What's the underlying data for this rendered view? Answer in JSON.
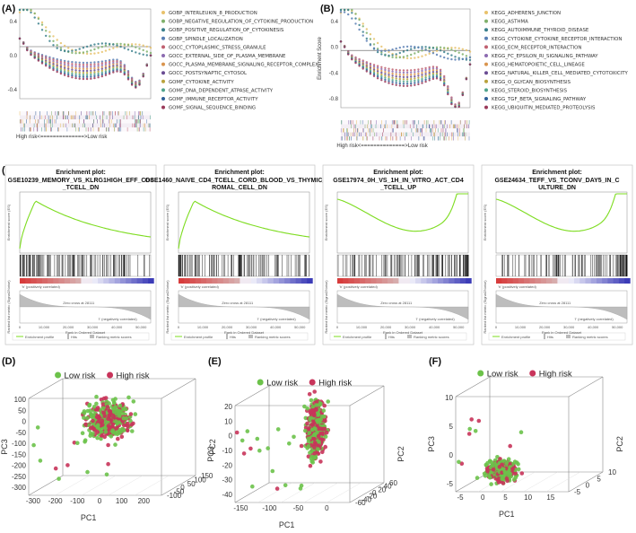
{
  "panels": {
    "a": "(A)",
    "b": "(B)",
    "c": "(C)",
    "d": "(D)",
    "e": "(E)",
    "f": "(F)"
  },
  "chart_data": [
    {
      "id": "A",
      "type": "line",
      "ylabel": "Enrichment Score",
      "yticks": [
        "0.4",
        "0.0",
        "-0.4"
      ],
      "xcaption": "High risk<==============>Low risk",
      "legend": [
        {
          "label": "GOBP_INTERLEUKIN_8_PRODUCTION",
          "color": "#e8c26b"
        },
        {
          "label": "GOBP_NEGATIVE_REGULATION_OF_CYTOKINE_PRODUCTION",
          "color": "#7fb06a"
        },
        {
          "label": "GOBP_POSITIVE_REGULATION_OF_CYTOKINESIS",
          "color": "#3a7f8c"
        },
        {
          "label": "GOBP_SPINDLE_LOCALIZATION",
          "color": "#5a7fb4"
        },
        {
          "label": "GOCC_CYTOPLASMIC_STRESS_GRANULE",
          "color": "#c06070"
        },
        {
          "label": "GOCC_EXTERNAL_SIDE_OF_PLASMA_MEMBRANE",
          "color": "#8c6bb1"
        },
        {
          "label": "GOCC_PLASMA_MEMBRANE_SIGNALING_RECEPTOR_COMPLEX",
          "color": "#d9944e"
        },
        {
          "label": "GOCC_POSTSYNAPTIC_CYTOSOL",
          "color": "#6a4c93"
        },
        {
          "label": "GOMF_CYTOKINE_ACTIVITY",
          "color": "#b9a23c"
        },
        {
          "label": "GOMF_DNA_DEPENDENT_ATPASE_ACTIVITY",
          "color": "#4fa38c"
        },
        {
          "label": "GOMF_IMMUNE_RECEPTOR_ACTIVITY",
          "color": "#2f5f98"
        },
        {
          "label": "GOMF_SIGNAL_SEQUENCE_BINDING",
          "color": "#9a3a5a"
        }
      ]
    },
    {
      "id": "B",
      "type": "line",
      "ylabel": "Enrichment Score",
      "yticks": [
        "0.4",
        "0.0",
        "-0.4",
        "-0.8"
      ],
      "xcaption": "High risk<==============>Low risk",
      "legend": [
        {
          "label": "KEGG_ADHERENS_JUNCTION",
          "color": "#e8c26b"
        },
        {
          "label": "KEGG_ASTHMA",
          "color": "#7fb06a"
        },
        {
          "label": "KEGG_AUTOIMMUNE_THYROID_DISEASE",
          "color": "#3a7f8c"
        },
        {
          "label": "KEGG_CYTOKINE_CYTOKINE_RECEPTOR_INTERACTION",
          "color": "#5a7fb4"
        },
        {
          "label": "KEGG_ECM_RECEPTOR_INTERACTION",
          "color": "#c06070"
        },
        {
          "label": "KEGG_FC_EPSILON_RI_SIGNALING_PATHWAY",
          "color": "#8c6bb1"
        },
        {
          "label": "KEGG_HEMATOPOIETIC_CELL_LINEAGE",
          "color": "#d9944e"
        },
        {
          "label": "KEGG_NATURAL_KILLER_CELL_MEDIATED_CYTOTOXICITY",
          "color": "#6a4c93"
        },
        {
          "label": "KEGG_O_GLYCAN_BIOSYNTHESIS",
          "color": "#b9a23c"
        },
        {
          "label": "KEGG_STEROID_BIOSYNTHESIS",
          "color": "#4fa38c"
        },
        {
          "label": "KEGG_TGF_BETA_SIGNALING_PATHWAY",
          "color": "#2f5f98"
        },
        {
          "label": "KEGG_UBIQUITIN_MEDIATED_PROTEOLYSIS",
          "color": "#9a3a5a"
        }
      ]
    },
    {
      "id": "C",
      "type": "line",
      "plots": [
        {
          "heading": "Enrichment plot:",
          "title": "GSE10239_MEMORY_VS_KLRG1HIGH_EFF_CD8_TCELL_DN",
          "shape": "peak"
        },
        {
          "heading": "Enrichment plot:",
          "title": "GSE1460_NAIVE_CD4_TCELL_CORD_BLOOD_VS_THYMIC_STROMAL_CELL_DN",
          "shape": "peak"
        },
        {
          "heading": "Enrichment plot:",
          "title": "GSE17974_0H_VS_1H_IN_VITRO_ACT_CD4_TCELL_UP",
          "shape": "valley"
        },
        {
          "heading": "Enrichment plot:",
          "title": "GSE24634_TEFF_VS_TCONV_DAY5_IN_CULTURE_DN",
          "shape": "valley"
        }
      ],
      "ylabel_top": "Enrichment score (ES)",
      "ylabel_bottom": "Ranked list metric (Signal2Noise)",
      "xlabel": "Rank in Ordered Dataset",
      "xticks": [
        "0",
        "10,000",
        "20,000",
        "30,000",
        "40,000",
        "50,000"
      ],
      "pos_label": "'h' (positively correlated)",
      "neg_label": "'l' (negatively correlated)",
      "zero_cross": "Zero cross at 28111",
      "legend": [
        "Enrichment profile",
        "Hits",
        "Ranking metric scores"
      ]
    },
    {
      "id": "D",
      "type": "scatter",
      "legend": [
        {
          "label": "Low risk",
          "color": "#6cc24a"
        },
        {
          "label": "High risk",
          "color": "#c8345a"
        }
      ],
      "xlabel": "PC1",
      "ylabel": "PC3",
      "zlabel": "PC2",
      "xticks": [
        "-300",
        "-200",
        "-100",
        "0",
        "100",
        "200"
      ],
      "yticks": [
        "-300",
        "-250",
        "-200",
        "-150",
        "-100",
        "-50",
        "0",
        "50",
        "100"
      ],
      "zticks": [
        "-100",
        "-50",
        "0",
        "50",
        "100",
        "150"
      ]
    },
    {
      "id": "E",
      "type": "scatter",
      "legend": [
        {
          "label": "Low risk",
          "color": "#6cc24a"
        },
        {
          "label": "High risk",
          "color": "#c8345a"
        }
      ],
      "xlabel": "PC1",
      "ylabel": "PC3",
      "zlabel": "PC2",
      "xticks": [
        "-150",
        "-100",
        "-50",
        "0"
      ],
      "yticks": [
        "-40",
        "-30",
        "-20",
        "-10",
        "0",
        "10",
        "20"
      ],
      "zticks": [
        "-60",
        "-40",
        "-20",
        "0",
        "20",
        "40",
        "60"
      ]
    },
    {
      "id": "F",
      "type": "scatter",
      "legend": [
        {
          "label": "Low risk",
          "color": "#6cc24a"
        },
        {
          "label": "High risk",
          "color": "#c8345a"
        }
      ],
      "xlabel": "PC1",
      "ylabel": "PC3",
      "zlabel": "PC2",
      "xticks": [
        "-5",
        "0",
        "5",
        "10",
        "15"
      ],
      "yticks": [
        "-5",
        "0",
        "5",
        "10"
      ],
      "zticks": [
        "-5",
        "0",
        "5",
        "10"
      ]
    }
  ]
}
